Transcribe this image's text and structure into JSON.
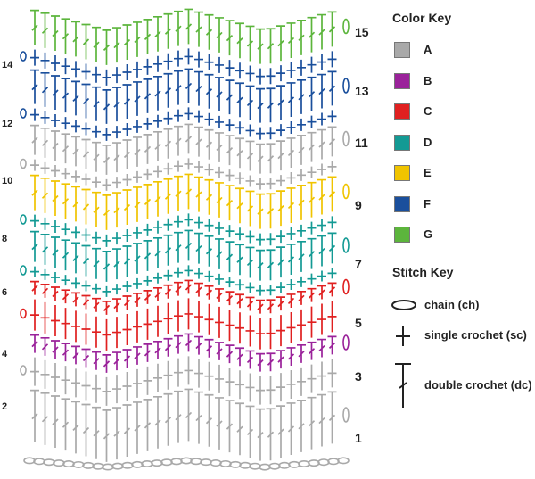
{
  "colors": {
    "A": "#a9a9a9",
    "B": "#9a229a",
    "C": "#e02020",
    "D": "#139a94",
    "E": "#f0c400",
    "F": "#1a4f9c",
    "G": "#5cb53c"
  },
  "rows": [
    {
      "num": "1",
      "color": "A",
      "type": "dc"
    },
    {
      "num": "2",
      "color": "A",
      "type": "sc"
    },
    {
      "num": "3",
      "color": "B",
      "type": "dc"
    },
    {
      "num": "4",
      "color": "C",
      "type": "sc"
    },
    {
      "num": "5",
      "color": "C",
      "type": "dc"
    },
    {
      "num": "6",
      "color": "D",
      "type": "sc"
    },
    {
      "num": "7",
      "color": "D",
      "type": "dc"
    },
    {
      "num": "8",
      "color": "D",
      "type": "sc"
    },
    {
      "num": "9",
      "color": "E",
      "type": "dc"
    },
    {
      "num": "10",
      "color": "A",
      "type": "sc"
    },
    {
      "num": "11",
      "color": "A",
      "type": "dc"
    },
    {
      "num": "12",
      "color": "F",
      "type": "sc"
    },
    {
      "num": "13",
      "color": "F",
      "type": "dc"
    },
    {
      "num": "14",
      "color": "F",
      "type": "sc"
    },
    {
      "num": "15",
      "color": "G",
      "type": "dc"
    }
  ],
  "color_key": {
    "title": "Color Key",
    "items": [
      {
        "label": "A",
        "color": "#a9a9a9"
      },
      {
        "label": "B",
        "color": "#9a229a"
      },
      {
        "label": "C",
        "color": "#e02020"
      },
      {
        "label": "D",
        "color": "#139a94"
      },
      {
        "label": "E",
        "color": "#f0c400"
      },
      {
        "label": "F",
        "color": "#1a4f9c"
      },
      {
        "label": "G",
        "color": "#5cb53c"
      }
    ]
  },
  "stitch_key": {
    "title": "Stitch Key",
    "items": [
      {
        "symbol": "chain-symbol",
        "label": "chain (ch)"
      },
      {
        "symbol": "single-crochet-symbol",
        "label": "single crochet (sc)"
      },
      {
        "symbol": "double-crochet-symbol",
        "label": "double crochet (dc)"
      }
    ]
  }
}
